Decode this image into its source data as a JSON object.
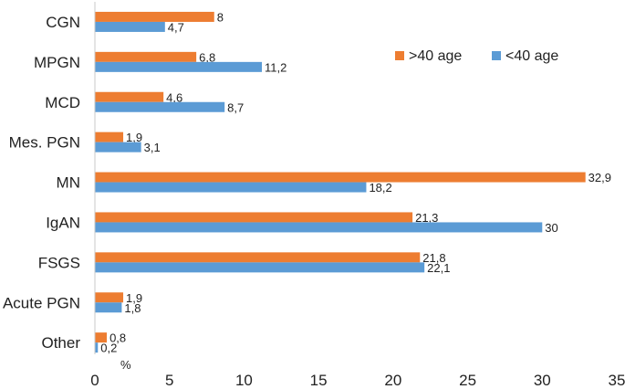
{
  "chart_data": {
    "type": "bar",
    "orientation": "horizontal",
    "title": "",
    "xlabel": "%",
    "ylabel": "",
    "categories": [
      "CGN",
      "MPGN",
      "MCD",
      "Mes. PGN",
      "MN",
      "IgAN",
      "FSGS",
      "Acute PGN",
      "Other"
    ],
    "series": [
      {
        "name": ">40 age",
        "color": "#ED7D31",
        "values": [
          8,
          6.8,
          4.6,
          1.9,
          32.9,
          21.3,
          21.8,
          1.9,
          0.8
        ],
        "labels": [
          "8",
          "6,8",
          "4,6",
          "1,9",
          "32,9",
          "21,3",
          "21,8",
          "1,9",
          "0,8"
        ]
      },
      {
        "name": "<40 age",
        "color": "#5B9BD5",
        "values": [
          4.7,
          11.2,
          8.7,
          3.1,
          18.2,
          30,
          22.1,
          1.8,
          0.2
        ],
        "labels": [
          "4,7",
          "11,2",
          "8,7",
          "3,1",
          "18,2",
          "30",
          "22,1",
          "1,8",
          "0,2"
        ]
      }
    ],
    "xlim": [
      0,
      35
    ],
    "xticks": [
      0,
      5,
      10,
      15,
      20,
      25,
      30,
      35
    ],
    "grid": false,
    "legend": "top-right"
  }
}
